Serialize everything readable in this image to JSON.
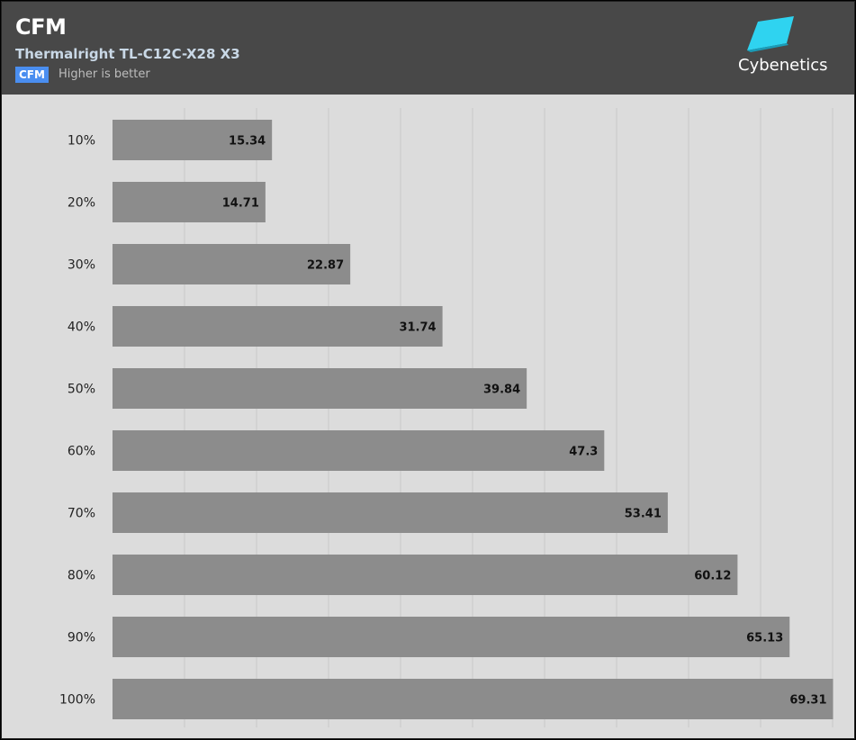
{
  "header": {
    "title": "CFM",
    "subtitle": "Thermalright TL-C12C-X28 X3",
    "badge": "CFM",
    "note": "Higher is better",
    "logo_text": "Cybenetics"
  },
  "colors": {
    "header_bg": "#484848",
    "plot_bg": "#dcdcdc",
    "bar": "#8c8c8c",
    "badge": "#4a8ef0",
    "logo": "#2fd3f0",
    "grid": "#c8c8c8"
  },
  "chart_data": {
    "type": "bar",
    "orientation": "horizontal",
    "title": "CFM",
    "subtitle": "Thermalright TL-C12C-X28 X3",
    "categories": [
      "10%",
      "20%",
      "30%",
      "40%",
      "50%",
      "60%",
      "70%",
      "80%",
      "90%",
      "100%"
    ],
    "values": [
      15.34,
      14.71,
      22.87,
      31.74,
      39.84,
      47.3,
      53.41,
      60.12,
      65.13,
      69.31
    ],
    "xlim": [
      0,
      70
    ],
    "grid": true
  }
}
